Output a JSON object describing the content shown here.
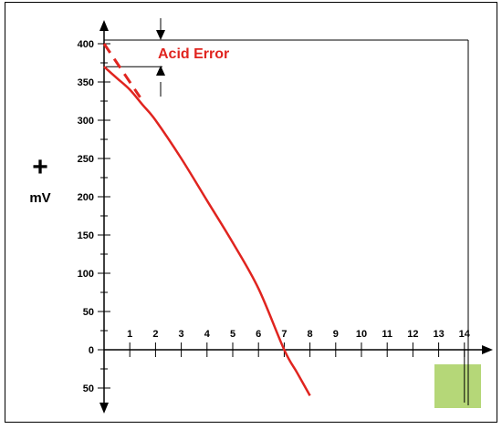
{
  "chart_data": {
    "type": "line",
    "ylabel_symbol": "+",
    "ylabel": "mV",
    "annotation": "Acid Error",
    "x_ticks": [
      "1",
      "2",
      "3",
      "4",
      "5",
      "6",
      "7",
      "8",
      "9",
      "10",
      "11",
      "12",
      "13",
      "14"
    ],
    "y_ticks_positive": [
      "50",
      "100",
      "150",
      "200",
      "250",
      "300",
      "350",
      "400"
    ],
    "y_tick_zero": "0",
    "y_ticks_negative": [
      "50"
    ],
    "xlim": [
      0,
      14
    ],
    "ylim": [
      -50,
      400
    ],
    "series": [
      {
        "x": [
          0,
          0.5,
          1,
          1.5,
          2,
          3,
          4,
          5,
          6,
          7,
          7.5,
          8
        ],
        "y": [
          370,
          355,
          340,
          320,
          300,
          250,
          195,
          140,
          80,
          0,
          -30,
          -60
        ]
      }
    ],
    "ideal_line": {
      "x": [
        0,
        1.4
      ],
      "y": [
        400,
        330
      ]
    },
    "acid_error_levels": [
      400,
      370
    ],
    "colors": {
      "line": "#e0241f",
      "label": "#e0241f",
      "axis": "#000000",
      "box": "#b5d778",
      "frame": "#000000"
    }
  }
}
